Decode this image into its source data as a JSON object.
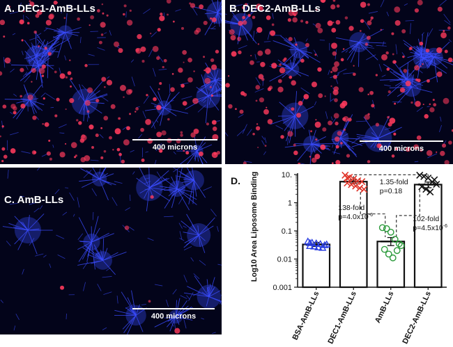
{
  "panels": [
    {
      "id": "A",
      "label": "A. DEC1-AmB-LLs",
      "scale_label": "400 microns",
      "red_density": 0.9,
      "blue_density": 0.8
    },
    {
      "id": "B",
      "label": "B. DEC2-AmB-LLs",
      "scale_label": "400 microns",
      "red_density": 1.0,
      "blue_density": 0.9
    },
    {
      "id": "C",
      "label": "C. AmB-LLs",
      "scale_label": "400 microns",
      "red_density": 0.02,
      "blue_density": 0.75
    }
  ],
  "colors": {
    "panel_bg": "#03041a",
    "blue_stain": "#3a4cff",
    "red_stain": "#ff3a5c",
    "bsa": "#2b3fe0",
    "dec1": "#e0362b",
    "amb": "#2a9a3a",
    "dec2": "#111111"
  },
  "chart_data": {
    "type": "bar",
    "panel_label": "D.",
    "ylabel": "Log10 Area Liposome Binding",
    "yscale": "log",
    "ylim": [
      0.001,
      10
    ],
    "yticks": [
      "0.001",
      "0.01",
      "0.1",
      "1",
      "10."
    ],
    "categories": [
      "BSA-AmB-LLs",
      "DEC1-AmB-LLs",
      "AmB-LLs",
      "DEC2-AmB-LLs"
    ],
    "bar_means": [
      0.033,
      5.6,
      0.042,
      4.4
    ],
    "error": [
      [
        0.028,
        0.039
      ],
      [
        4.8,
        6.5
      ],
      [
        0.03,
        0.058
      ],
      [
        3.4,
        5.4
      ]
    ],
    "markers": [
      "triangle",
      "x",
      "circle",
      "x"
    ],
    "points": [
      [
        0.042,
        0.038,
        0.036,
        0.034,
        0.031,
        0.029,
        0.028,
        0.026,
        0.025,
        0.033,
        0.037
      ],
      [
        9.5,
        8.0,
        7.0,
        6.0,
        5.6,
        5.0,
        4.4,
        3.9,
        3.3,
        3.0,
        7.5
      ],
      [
        0.13,
        0.12,
        0.09,
        0.05,
        0.035,
        0.022,
        0.015,
        0.011,
        0.02,
        0.03
      ],
      [
        9.5,
        8.5,
        7.5,
        5.5,
        4.5,
        3.7,
        3.0,
        2.4,
        6.5
      ]
    ],
    "annotations": [
      {
        "line1": "1.35-fold",
        "line2": "p=0.18"
      },
      {
        "line1": "138-fold",
        "line2": "p=4.0x10",
        "exp": "-6"
      },
      {
        "line1": "102-fold",
        "line2": "p=4.5x10",
        "exp": "-6"
      }
    ]
  }
}
